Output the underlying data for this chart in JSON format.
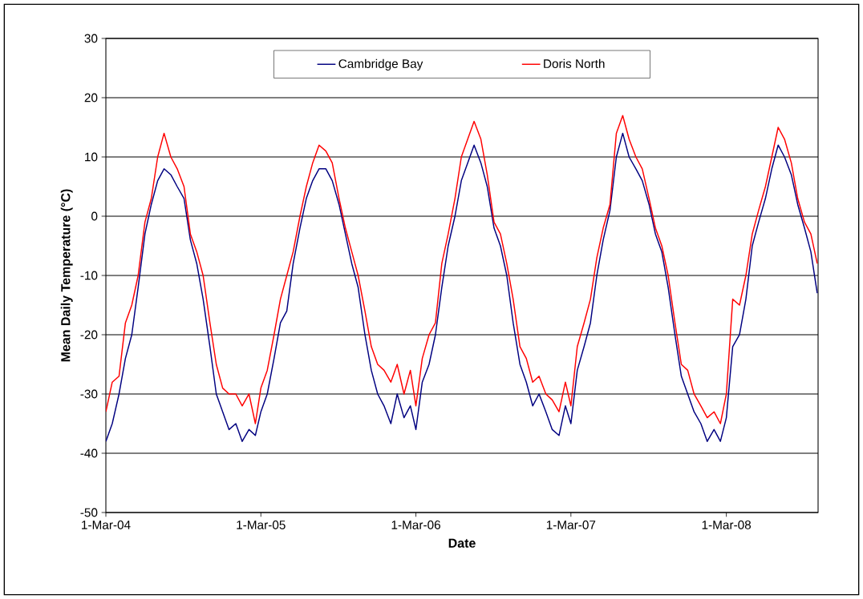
{
  "chart_data": {
    "type": "line",
    "xlabel": "Date",
    "ylabel": "Mean Daily Temperature (°C)",
    "x": [
      "2004-03-01",
      "2004-03-16",
      "2004-04-01",
      "2004-04-16",
      "2004-05-01",
      "2004-05-16",
      "2004-06-01",
      "2004-06-16",
      "2004-07-01",
      "2004-07-16",
      "2004-08-01",
      "2004-08-16",
      "2004-09-01",
      "2004-09-16",
      "2004-10-01",
      "2004-10-16",
      "2004-11-01",
      "2004-11-16",
      "2004-12-01",
      "2004-12-16",
      "2005-01-01",
      "2005-01-16",
      "2005-02-01",
      "2005-02-16",
      "2005-03-01",
      "2005-03-16",
      "2005-04-01",
      "2005-04-16",
      "2005-05-01",
      "2005-05-16",
      "2005-06-01",
      "2005-06-16",
      "2005-07-01",
      "2005-07-16",
      "2005-08-01",
      "2005-08-16",
      "2005-09-01",
      "2005-09-16",
      "2005-10-01",
      "2005-10-16",
      "2005-11-01",
      "2005-11-16",
      "2005-12-01",
      "2005-12-16",
      "2006-01-01",
      "2006-01-16",
      "2006-02-01",
      "2006-02-16",
      "2006-03-01",
      "2006-03-16",
      "2006-04-01",
      "2006-04-16",
      "2006-05-01",
      "2006-05-16",
      "2006-06-01",
      "2006-06-16",
      "2006-07-01",
      "2006-07-16",
      "2006-08-01",
      "2006-08-16",
      "2006-09-01",
      "2006-09-16",
      "2006-10-01",
      "2006-10-16",
      "2006-11-01",
      "2006-11-16",
      "2006-12-01",
      "2006-12-16",
      "2007-01-01",
      "2007-01-16",
      "2007-02-01",
      "2007-02-16",
      "2007-03-01",
      "2007-03-16",
      "2007-04-01",
      "2007-04-16",
      "2007-05-01",
      "2007-05-16",
      "2007-06-01",
      "2007-06-16",
      "2007-07-01",
      "2007-07-16",
      "2007-08-01",
      "2007-08-16",
      "2007-09-01",
      "2007-09-16",
      "2007-10-01",
      "2007-10-16",
      "2007-11-01",
      "2007-11-16",
      "2007-12-01",
      "2007-12-16",
      "2008-01-01",
      "2008-01-16",
      "2008-02-01",
      "2008-02-16",
      "2008-03-01",
      "2008-03-16",
      "2008-04-01",
      "2008-04-16",
      "2008-05-01",
      "2008-05-16",
      "2008-06-01",
      "2008-06-16",
      "2008-07-01",
      "2008-07-16",
      "2008-08-01",
      "2008-08-16",
      "2008-09-01",
      "2008-09-16",
      "2008-10-01"
    ],
    "series": [
      {
        "name": "Cambridge Bay",
        "color": "#000080",
        "values": [
          -38,
          -35,
          -30,
          -24,
          -20,
          -12,
          -3,
          2,
          6,
          8,
          7,
          5,
          3,
          -4,
          -8,
          -14,
          -22,
          -30,
          -33,
          -36,
          -35,
          -38,
          -36,
          -37,
          -33,
          -30,
          -24,
          -18,
          -16,
          -8,
          -2,
          3,
          6,
          8,
          8,
          6,
          2,
          -3,
          -8,
          -12,
          -20,
          -26,
          -30,
          -32,
          -35,
          -30,
          -34,
          -32,
          -36,
          -28,
          -25,
          -20,
          -12,
          -5,
          0,
          6,
          9,
          12,
          9,
          5,
          -2,
          -5,
          -10,
          -18,
          -25,
          -28,
          -32,
          -30,
          -33,
          -36,
          -37,
          -32,
          -35,
          -26,
          -22,
          -18,
          -10,
          -4,
          1,
          10,
          14,
          10,
          8,
          6,
          2,
          -3,
          -6,
          -12,
          -20,
          -27,
          -30,
          -33,
          -35,
          -38,
          -36,
          -38,
          -34,
          -22,
          -20,
          -14,
          -5,
          -1,
          3,
          8,
          12,
          10,
          7,
          2,
          -2,
          -6,
          -13
        ]
      },
      {
        "name": "Doris North",
        "color": "#ff0000",
        "values": [
          -33,
          -28,
          -27,
          -18,
          -15,
          -10,
          -1,
          3,
          10,
          14,
          10,
          8,
          5,
          -3,
          -6,
          -10,
          -18,
          -25,
          -29,
          -30,
          -30,
          -32,
          -30,
          -35,
          -29,
          -26,
          -20,
          -14,
          -10,
          -6,
          0,
          5,
          9,
          12,
          11,
          9,
          3,
          -2,
          -6,
          -10,
          -16,
          -22,
          -25,
          -26,
          -28,
          -25,
          -30,
          -26,
          -32,
          -24,
          -20,
          -18,
          -8,
          -3,
          3,
          10,
          13,
          16,
          13,
          7,
          -1,
          -3,
          -8,
          -14,
          -22,
          -24,
          -28,
          -27,
          -30,
          -31,
          -33,
          -28,
          -32,
          -22,
          -18,
          -14,
          -7,
          -2,
          2,
          14,
          17,
          13,
          10,
          8,
          3,
          -2,
          -5,
          -10,
          -18,
          -25,
          -26,
          -30,
          -32,
          -34,
          -33,
          -35,
          -30,
          -14,
          -15,
          -10,
          -3,
          1,
          5,
          10,
          15,
          13,
          9,
          3,
          -1,
          -3,
          -8
        ]
      }
    ],
    "xlim": [
      "2004-03-01",
      "2008-10-03"
    ],
    "xticks": [
      {
        "value": "2004-03-01",
        "label": "1-Mar-04"
      },
      {
        "value": "2005-03-01",
        "label": "1-Mar-05"
      },
      {
        "value": "2006-03-01",
        "label": "1-Mar-06"
      },
      {
        "value": "2007-03-01",
        "label": "1-Mar-07"
      },
      {
        "value": "2008-03-01",
        "label": "1-Mar-08"
      }
    ],
    "ylim": [
      -50,
      30
    ],
    "yticks": [
      -50,
      -40,
      -30,
      -20,
      -10,
      0,
      10,
      20,
      30
    ],
    "grid": "y",
    "legend": "top",
    "marker": "none",
    "line_style": "solid"
  }
}
